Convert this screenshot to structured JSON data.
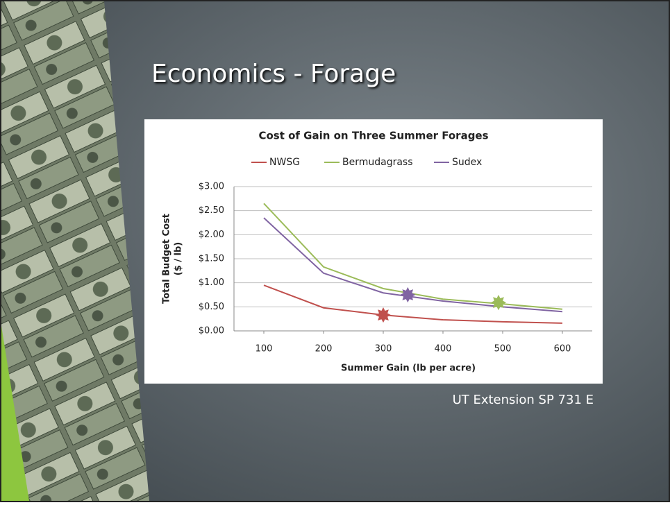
{
  "slide": {
    "title": "Economics - Forage",
    "source": "UT Extension SP 731 E"
  },
  "chart_data": {
    "type": "line",
    "title": "Cost of Gain on Three Summer Forages",
    "xlabel": "Summer Gain (lb per acre)",
    "ylabel": [
      "Total Budget Cost",
      "($ / lb)"
    ],
    "x": [
      100,
      200,
      300,
      400,
      500,
      600
    ],
    "series": [
      {
        "name": "NWSG",
        "color": "#c0504d",
        "values": [
          0.95,
          0.48,
          0.33,
          0.23,
          0.19,
          0.16
        ]
      },
      {
        "name": "Bermudagrass",
        "color": "#9bbb59",
        "values": [
          2.65,
          1.33,
          0.88,
          0.66,
          0.56,
          0.45
        ]
      },
      {
        "name": "Sudex",
        "color": "#8064a2",
        "values": [
          2.35,
          1.2,
          0.79,
          0.62,
          0.5,
          0.4
        ]
      }
    ],
    "markers": [
      {
        "x": 300,
        "y": 0.33,
        "color": "#c0504d"
      },
      {
        "x": 341,
        "y": 0.75,
        "color": "#8064a2"
      },
      {
        "x": 493,
        "y": 0.59,
        "color": "#9bbb59"
      }
    ],
    "xlim": [
      50,
      650
    ],
    "xticks": [
      100,
      200,
      300,
      400,
      500,
      600
    ],
    "ylim": [
      0,
      3
    ],
    "yticks": [
      {
        "value": 0,
        "label": "$0.00"
      },
      {
        "value": 0.5,
        "label": "$0.50"
      },
      {
        "value": 1,
        "label": "$1.00"
      },
      {
        "value": 1.5,
        "label": "$1.50"
      },
      {
        "value": 2,
        "label": "$2.00"
      },
      {
        "value": 2.5,
        "label": "$2.50"
      },
      {
        "value": 3,
        "label": "$3.00"
      }
    ],
    "grid": true,
    "legend": "top"
  }
}
